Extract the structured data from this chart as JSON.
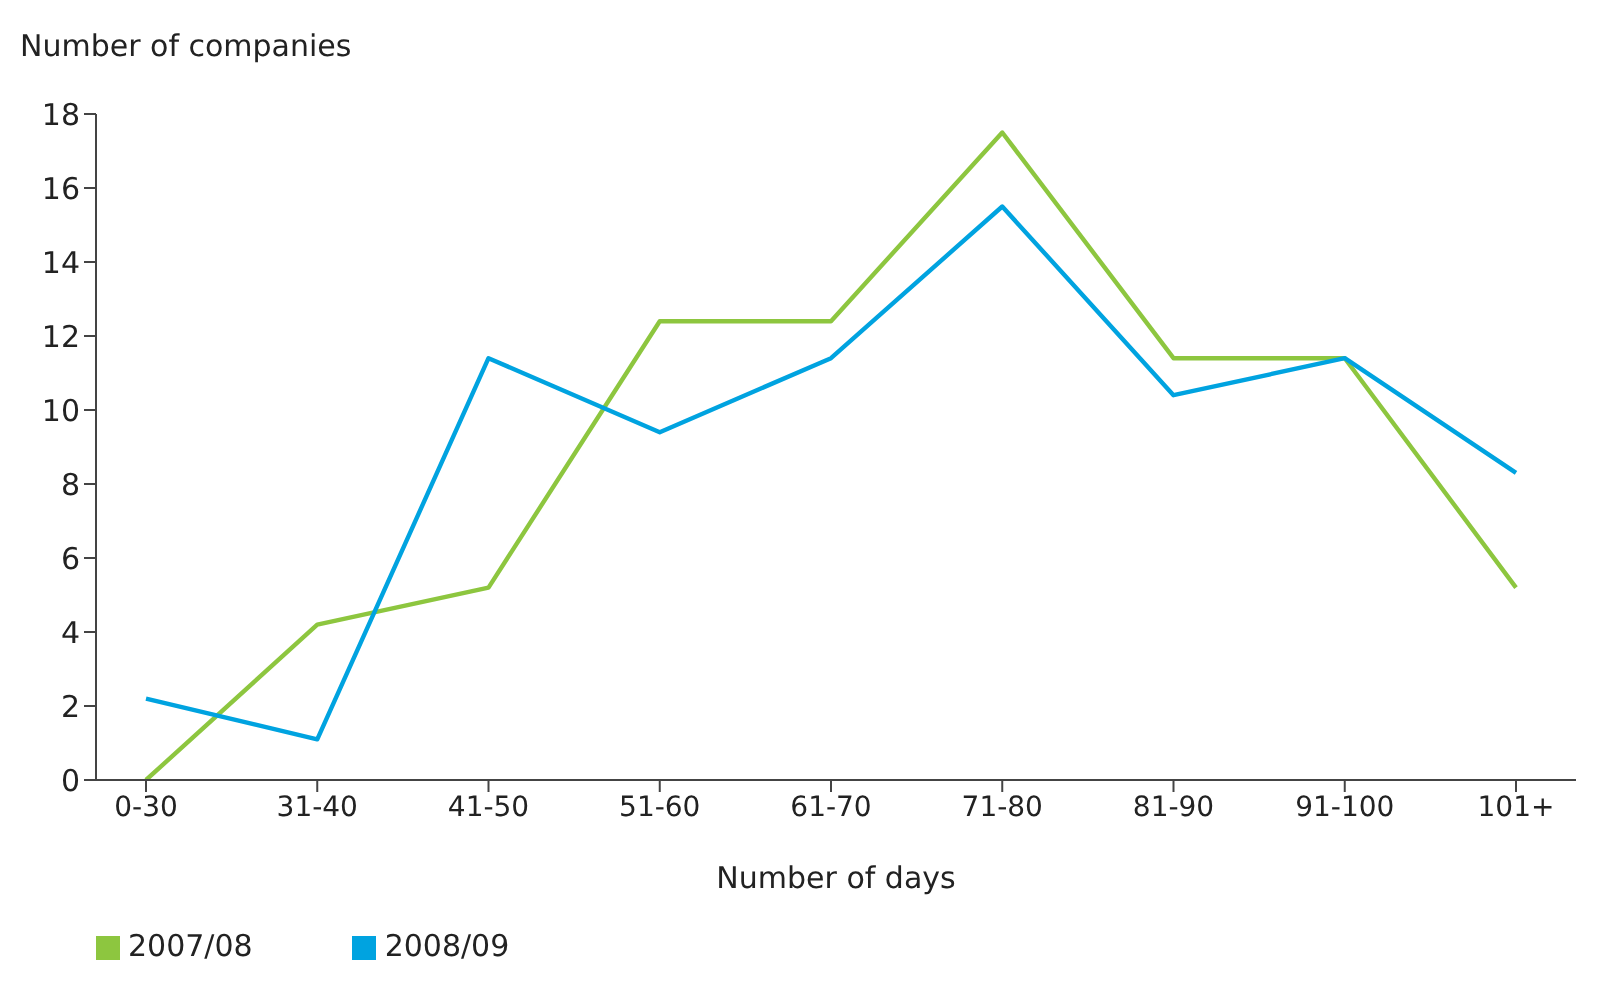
{
  "chart_data": {
    "type": "line",
    "ylabel": "Number of companies",
    "xlabel": "Number of days",
    "categories": [
      "0-30",
      "31-40",
      "41-50",
      "51-60",
      "61-70",
      "71-80",
      "81-90",
      "91-100",
      "101+"
    ],
    "series": [
      {
        "name": "2007/08",
        "color": "#8dc63f",
        "values": [
          0,
          4.2,
          5.2,
          12.4,
          12.4,
          17.5,
          11.4,
          11.4,
          5.2
        ]
      },
      {
        "name": "2008/09",
        "color": "#00a3e0",
        "values": [
          2.2,
          1.1,
          11.4,
          9.4,
          11.4,
          15.5,
          10.4,
          11.4,
          8.3
        ]
      }
    ],
    "ylim": [
      0,
      18
    ],
    "yticks": [
      0,
      2,
      4,
      6,
      8,
      10,
      12,
      14,
      16,
      18
    ],
    "grid": false,
    "legend": "bottom left",
    "marker": "none",
    "line_style": "solid"
  }
}
